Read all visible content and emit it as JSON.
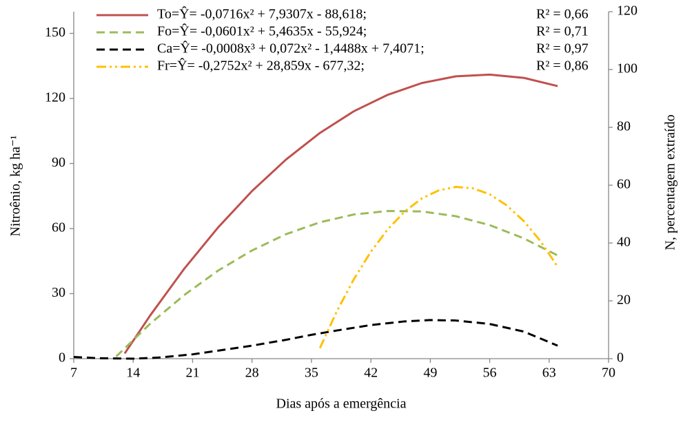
{
  "chart_data": {
    "type": "line",
    "x_label": "Dias após a emergência",
    "y_label": "Nitroênio, kg ha⁻¹",
    "y2_label": "N, percentagem extraído",
    "xlim": [
      7,
      70
    ],
    "xticks": [
      7,
      14,
      21,
      28,
      35,
      42,
      49,
      56,
      63,
      70
    ],
    "ylim": [
      0,
      160
    ],
    "yticks": [
      0,
      30,
      60,
      90,
      120,
      150
    ],
    "y2lim": [
      0,
      120
    ],
    "y2ticks": [
      0,
      20,
      40,
      60,
      80,
      100,
      120
    ],
    "grid": false,
    "legend": "top",
    "series": [
      {
        "name": "To=Ŷ= -0,0716x² + 7,9307x - 88,618;",
        "r2": "R² = 0,66",
        "color": "#c0504d",
        "dash": "solid",
        "x": [
          13,
          16,
          20,
          24,
          28,
          32,
          36,
          40,
          44,
          48,
          52,
          56,
          60,
          64
        ],
        "values": [
          2.4,
          19.9,
          41.4,
          60.5,
          77.3,
          91.8,
          104.1,
          114.1,
          121.7,
          127.1,
          130.2,
          131.0,
          129.5,
          125.7
        ]
      },
      {
        "name": "Fo=Ŷ= -0,0601x² + 5,4635x - 55,924;",
        "r2": "R² = 0,71",
        "color": "#9bbb59",
        "dash": "dash",
        "x": [
          12,
          16,
          20,
          24,
          28,
          32,
          36,
          40,
          44,
          48,
          52,
          56,
          60,
          64
        ],
        "values": [
          1.0,
          16.1,
          29.3,
          40.6,
          49.9,
          57.4,
          62.9,
          66.5,
          68.1,
          67.9,
          65.7,
          61.6,
          55.5,
          47.6
        ]
      },
      {
        "name": "Ca=Ŷ= -0,0008x³ + 0,072x² - 1,4488x + 7,4071;",
        "r2": "R² = 0,97",
        "color": "#000000",
        "dash": "dash",
        "x": [
          7,
          10,
          14,
          17,
          21,
          24,
          28,
          32,
          35,
          38,
          42,
          46,
          49,
          52,
          56,
          60,
          64
        ],
        "values": [
          0.8,
          0.2,
          0,
          0.5,
          2,
          3.7,
          6,
          8.7,
          11,
          13,
          15.5,
          17.2,
          17.8,
          17.6,
          16,
          12.5,
          6
        ]
      },
      {
        "name": "Fr=Ŷ= -0,2752x² + 28,859x - 677,32;",
        "r2": "R² = 0,86",
        "color": "#ffc000",
        "dash": "dash-dot-dot",
        "x": [
          36,
          38,
          40,
          42,
          44,
          46,
          48,
          50,
          52,
          54,
          56,
          58,
          60,
          62,
          64
        ],
        "values": [
          4.9,
          21.9,
          36.7,
          49.3,
          59.7,
          67.9,
          73.9,
          77.6,
          79.2,
          78.6,
          75.8,
          70.7,
          63.5,
          54.1,
          42.4
        ]
      }
    ]
  }
}
